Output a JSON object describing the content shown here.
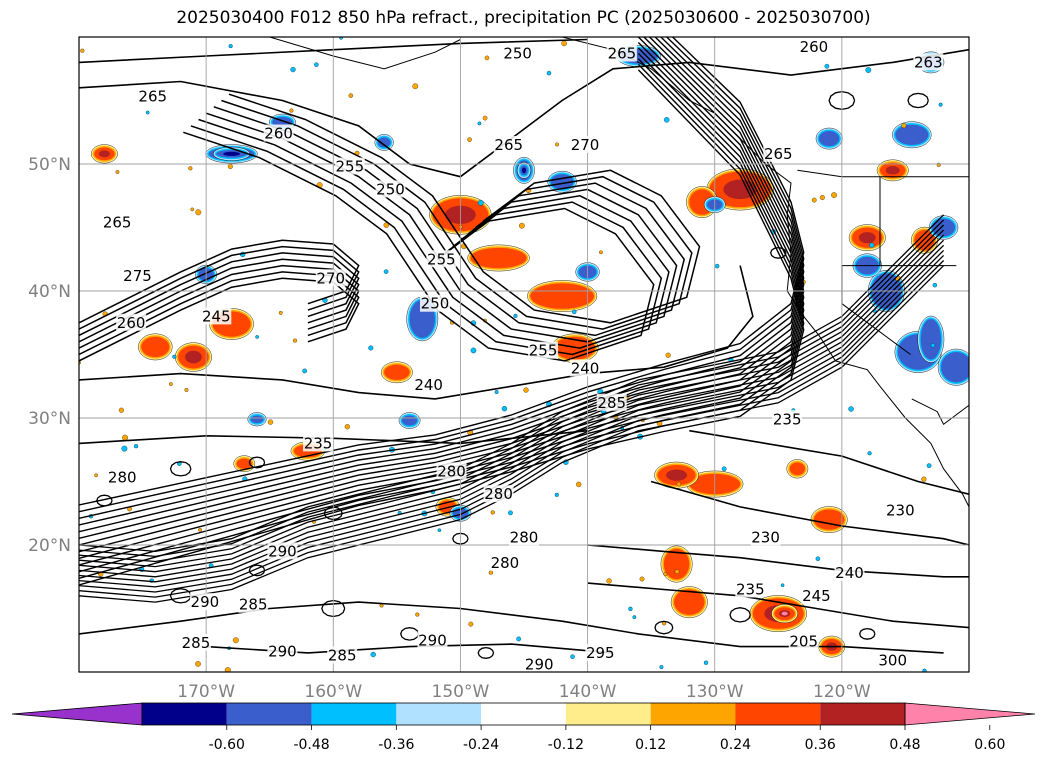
{
  "title": "2025030400 F012 850 hPa refract., precipitation PC (2025030600 - 2025030700)",
  "map": {
    "lon_range": [
      -180,
      -110
    ],
    "lat_range": [
      10,
      60
    ],
    "lat_ticks": [
      {
        "value": 20,
        "label": "20°N"
      },
      {
        "value": 30,
        "label": "30°N"
      },
      {
        "value": 40,
        "label": "40°N"
      },
      {
        "value": 50,
        "label": "50°N"
      }
    ],
    "lon_ticks": [
      {
        "value": -170,
        "label": "170°W"
      },
      {
        "value": -160,
        "label": "160°W"
      },
      {
        "value": -150,
        "label": "150°W"
      },
      {
        "value": -140,
        "label": "140°W"
      },
      {
        "value": -130,
        "label": "130°W"
      },
      {
        "value": -120,
        "label": "120°W"
      }
    ],
    "grid": true,
    "contour_labels": [
      {
        "text": "265",
        "lon": -174.2,
        "lat": 55.3
      },
      {
        "text": "260",
        "lon": -164.3,
        "lat": 52.4
      },
      {
        "text": "255",
        "lon": -158.7,
        "lat": 49.8
      },
      {
        "text": "250",
        "lon": -155.5,
        "lat": 48.0
      },
      {
        "text": "265",
        "lon": -177.0,
        "lat": 45.4
      },
      {
        "text": "275",
        "lon": -175.4,
        "lat": 41.2
      },
      {
        "text": "270",
        "lon": -160.2,
        "lat": 41.0
      },
      {
        "text": "255",
        "lon": -151.5,
        "lat": 42.5
      },
      {
        "text": "250",
        "lon": -152.0,
        "lat": 39.0
      },
      {
        "text": "260",
        "lon": -175.9,
        "lat": 37.5
      },
      {
        "text": "245",
        "lon": -169.2,
        "lat": 38.0
      },
      {
        "text": "250",
        "lon": -145.5,
        "lat": 58.7
      },
      {
        "text": "265",
        "lon": -137.3,
        "lat": 58.7
      },
      {
        "text": "260",
        "lon": -122.2,
        "lat": 59.2
      },
      {
        "text": "263",
        "lon": -113.2,
        "lat": 58.0
      },
      {
        "text": "265",
        "lon": -146.2,
        "lat": 51.5
      },
      {
        "text": "270",
        "lon": -140.2,
        "lat": 51.5
      },
      {
        "text": "265",
        "lon": -125.0,
        "lat": 50.8
      },
      {
        "text": "255",
        "lon": -143.5,
        "lat": 35.3
      },
      {
        "text": "240",
        "lon": -140.2,
        "lat": 33.9
      },
      {
        "text": "240",
        "lon": -152.5,
        "lat": 32.6
      },
      {
        "text": "285",
        "lon": -138.1,
        "lat": 31.2
      },
      {
        "text": "235",
        "lon": -161.2,
        "lat": 28.0
      },
      {
        "text": "235",
        "lon": -124.3,
        "lat": 29.9
      },
      {
        "text": "280",
        "lon": -176.6,
        "lat": 25.3
      },
      {
        "text": "280",
        "lon": -150.7,
        "lat": 25.8
      },
      {
        "text": "230",
        "lon": -115.4,
        "lat": 22.7
      },
      {
        "text": "230",
        "lon": -126.0,
        "lat": 20.6
      },
      {
        "text": "280",
        "lon": -145.0,
        "lat": 20.6
      },
      {
        "text": "280",
        "lon": -146.5,
        "lat": 18.6
      },
      {
        "text": "240",
        "lon": -119.4,
        "lat": 17.8
      },
      {
        "text": "235",
        "lon": -127.2,
        "lat": 16.5
      },
      {
        "text": "245",
        "lon": -122.0,
        "lat": 16.0
      },
      {
        "text": "285",
        "lon": -166.3,
        "lat": 15.3
      },
      {
        "text": "290",
        "lon": -170.1,
        "lat": 15.5
      },
      {
        "text": "285",
        "lon": -170.8,
        "lat": 12.3
      },
      {
        "text": "290",
        "lon": -164.0,
        "lat": 11.6
      },
      {
        "text": "290",
        "lon": -152.2,
        "lat": 12.5
      },
      {
        "text": "295",
        "lon": -139.0,
        "lat": 11.5
      },
      {
        "text": "290",
        "lon": -143.8,
        "lat": 10.6
      },
      {
        "text": "285",
        "lon": -159.3,
        "lat": 11.3
      },
      {
        "text": "290",
        "lon": -164.0,
        "lat": 19.5
      },
      {
        "text": "280",
        "lon": -147.0,
        "lat": 24.0
      },
      {
        "text": "205",
        "lon": -123.0,
        "lat": 12.4
      },
      {
        "text": "300",
        "lon": -116.0,
        "lat": 10.9
      }
    ]
  },
  "colorbar": {
    "ticks": [
      "-0.60",
      "-0.48",
      "-0.36",
      "-0.24",
      "-0.12",
      "0.12",
      "0.24",
      "0.36",
      "0.48",
      "0.60"
    ],
    "colors": [
      "#9932cc",
      "#00008b",
      "#3a5fcd",
      "#00bfff",
      "#b0e2ff",
      "#ffffff",
      "#ffec8b",
      "#ffa500",
      "#ff4500",
      "#b22222",
      "#ff82ab"
    ]
  },
  "colors": {
    "contour": "#000000",
    "grid": "#a0a0a0",
    "tick_label": "#808080"
  }
}
